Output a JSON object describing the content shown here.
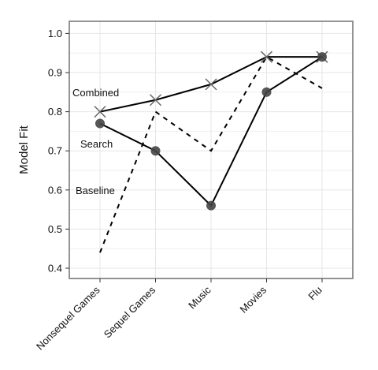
{
  "chart_data": {
    "type": "line",
    "categories": [
      "Nonsequel Games",
      "Sequel Games",
      "Music",
      "Movies",
      "Flu"
    ],
    "ylabel": "Model Fit",
    "xlabel": "",
    "ylim": [
      0.38,
      1.03
    ],
    "yticks": [
      0.4,
      0.5,
      0.6,
      0.7,
      0.8,
      0.9,
      1.0
    ],
    "ytick_labels": [
      "0.4",
      "0.5",
      "0.6",
      "0.7",
      "0.8",
      "0.9",
      "1.0"
    ],
    "grid": true,
    "series": [
      {
        "name": "Combined",
        "values": [
          0.8,
          0.83,
          0.87,
          0.94,
          0.94
        ],
        "style": "solid",
        "marker": "x",
        "color": "#000000"
      },
      {
        "name": "Search",
        "values": [
          0.77,
          0.7,
          0.56,
          0.85,
          0.94
        ],
        "style": "solid",
        "marker": "circle",
        "color": "#000000"
      },
      {
        "name": "Baseline",
        "values": [
          0.44,
          0.8,
          0.7,
          0.94,
          0.86
        ],
        "style": "dashed",
        "marker": "none",
        "color": "#000000"
      }
    ],
    "annotations": [
      "Combined",
      "Search",
      "Baseline"
    ]
  }
}
